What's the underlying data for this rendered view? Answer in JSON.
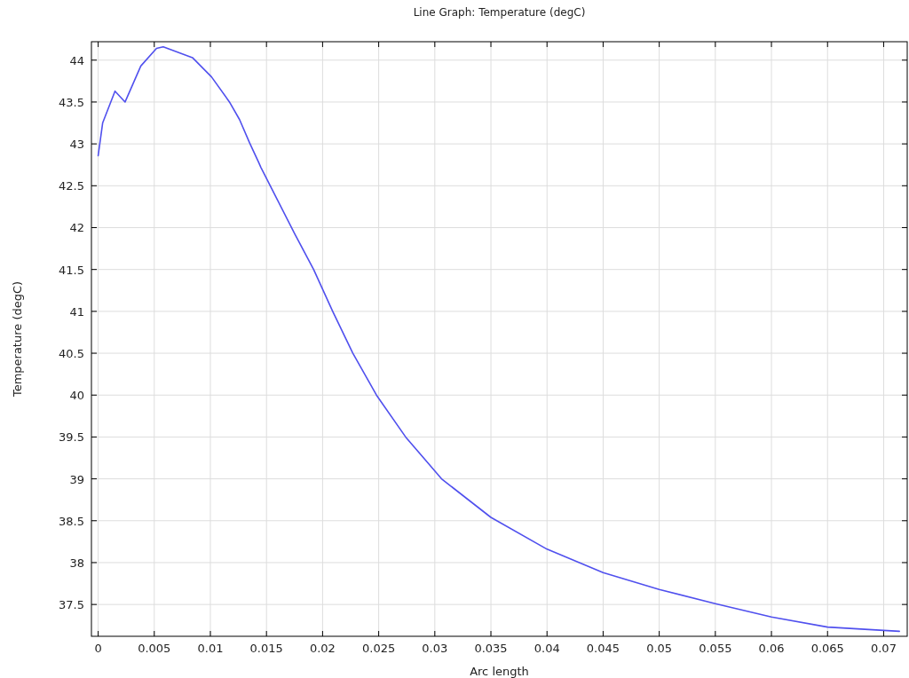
{
  "chart_data": {
    "type": "line",
    "title": "Line Graph: Temperature (degC)",
    "xlabel": "Arc length",
    "ylabel": "Temperature (degC)",
    "xlim": [
      -0.0006,
      0.0721
    ],
    "ylim": [
      37.12,
      44.22
    ],
    "xticks": [
      0,
      0.005,
      0.01,
      0.015,
      0.02,
      0.025,
      0.03,
      0.035,
      0.04,
      0.045,
      0.05,
      0.055,
      0.06,
      0.065,
      0.07
    ],
    "yticks": [
      37.5,
      38,
      38.5,
      39,
      39.5,
      40,
      40.5,
      41,
      41.5,
      42,
      42.5,
      43,
      43.5,
      44
    ],
    "grid": true,
    "line_style": "solid",
    "marker": "none",
    "series": [
      {
        "color": "#5050ee",
        "x": [
          0,
          0.0004,
          0.0015,
          0.0024,
          0.0038,
          0.0052,
          0.0058,
          0.0084,
          0.0101,
          0.0117,
          0.0126,
          0.0135,
          0.0143,
          0.0145,
          0.0175,
          0.0192,
          0.0209,
          0.0227,
          0.0248,
          0.0274,
          0.0306,
          0.035,
          0.04,
          0.045,
          0.05,
          0.055,
          0.06,
          0.065,
          0.07,
          0.0714
        ],
        "values": [
          42.86,
          43.25,
          43.63,
          43.5,
          43.93,
          44.14,
          44.16,
          44.03,
          43.8,
          43.5,
          43.29,
          43.01,
          42.78,
          42.72,
          41.93,
          41.5,
          41,
          40.5,
          40,
          39.5,
          39,
          38.54,
          38.16,
          37.88,
          37.68,
          37.51,
          37.35,
          37.23,
          37.19,
          37.18
        ]
      }
    ]
  }
}
